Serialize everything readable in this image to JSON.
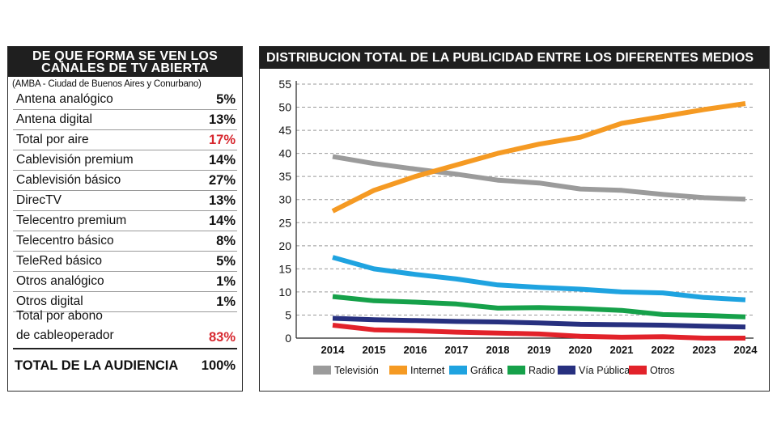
{
  "table": {
    "title": "DE QUE FORMA SE VEN LOS CANALES DE TV ABIERTA",
    "subtitle": "(AMBA - Ciudad de Buenos Aires y Conurbano)",
    "rows": [
      {
        "label": "Antena analógico",
        "value": "5%"
      },
      {
        "label": "Antena digital",
        "value": "13%"
      },
      {
        "label": "Total por aire",
        "value": "17%"
      },
      {
        "label": "Cablevisión premium",
        "value": "14%"
      },
      {
        "label": "Cablevisión básico",
        "value": "27%"
      },
      {
        "label": "DirecTV",
        "value": "13%"
      },
      {
        "label": "Telecentro premium",
        "value": "14%"
      },
      {
        "label": "Telecentro básico",
        "value": "8%"
      },
      {
        "label": "TeleRed básico",
        "value": "5%"
      },
      {
        "label": "Otros analógico",
        "value": "1%"
      },
      {
        "label": "Otros digital",
        "value": "1%"
      }
    ],
    "abono_label_1": "Total por abono",
    "abono_label_2": "de cableoperador",
    "abono_value": "83%",
    "total_label": "TOTAL DE LA AUDIENCIA",
    "total_value": "100%",
    "highlight_color": "#d7282f"
  },
  "chart_data": {
    "type": "line",
    "title": "DISTRIBUCION TOTAL DE LA PUBLICIDAD ENTRE LOS DIFERENTES MEDIOS",
    "x": [
      "2014",
      "2015",
      "2016",
      "2017",
      "2018",
      "2019",
      "2020",
      "2021",
      "2022",
      "2023",
      "2024"
    ],
    "ylim": [
      0,
      55
    ],
    "yticks": [
      0,
      5,
      10,
      15,
      20,
      25,
      30,
      35,
      40,
      45,
      50,
      55
    ],
    "grid": true,
    "legend_position": "bottom",
    "series": [
      {
        "name": "Televisión",
        "color": "#9b9b9b",
        "values": [
          39.3,
          37.8,
          36.6,
          35.5,
          34.2,
          33.6,
          32.3,
          32.0,
          31.1,
          30.4,
          30.1
        ]
      },
      {
        "name": "Internet",
        "color": "#f59a23",
        "values": [
          27.5,
          32.0,
          35.0,
          37.5,
          40.0,
          42.0,
          43.5,
          46.5,
          48.0,
          49.5,
          50.8
        ]
      },
      {
        "name": "Gráfica",
        "color": "#1fa3e0",
        "values": [
          17.5,
          15.0,
          13.8,
          12.8,
          11.5,
          11.0,
          10.6,
          10.0,
          9.8,
          8.8,
          8.3
        ]
      },
      {
        "name": "Radio",
        "color": "#16a14a",
        "values": [
          9.0,
          8.1,
          7.8,
          7.4,
          6.5,
          6.6,
          6.4,
          6.0,
          5.1,
          4.9,
          4.6
        ]
      },
      {
        "name": "Vía Pública",
        "color": "#27307f",
        "values": [
          4.3,
          4.0,
          3.8,
          3.6,
          3.5,
          3.3,
          3.0,
          2.9,
          2.8,
          2.6,
          2.4
        ]
      },
      {
        "name": "Otros",
        "color": "#e2222a",
        "values": [
          2.8,
          1.8,
          1.6,
          1.3,
          1.1,
          0.9,
          0.4,
          0.2,
          0.3,
          0.0,
          0.0
        ]
      }
    ]
  }
}
